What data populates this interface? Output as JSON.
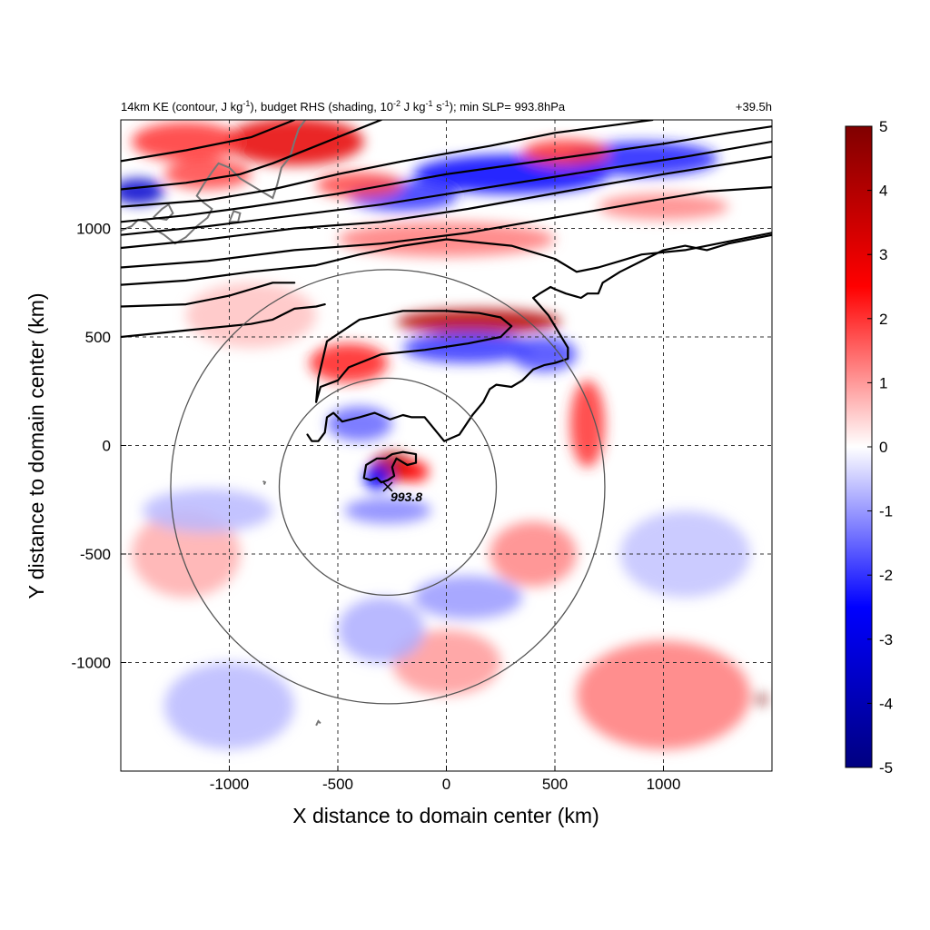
{
  "chart_data": {
    "type": "heatmap",
    "title": {
      "prefix": "14km KE (contour, J kg",
      "sup1": "-1",
      "mid1": "), budget RHS (shading, 10",
      "sup2": "-2",
      "mid2": " J kg",
      "sup3": "-1",
      "mid3": " s",
      "sup4": "-1",
      "suffix": "); min SLP= 993.8hPa"
    },
    "time_label": "+39.5h",
    "xlabel": "X distance to domain center (km)",
    "ylabel": "Y distance to domain center (km)",
    "xlim": [
      -1500,
      1500
    ],
    "ylim": [
      -1500,
      1500
    ],
    "x_ticks": [
      -1000,
      -500,
      0,
      500,
      1000
    ],
    "x_tick_labels": [
      "-1000",
      "-500",
      "0",
      "500",
      "1000"
    ],
    "y_ticks": [
      -1000,
      -500,
      0,
      500,
      1000
    ],
    "y_tick_labels": [
      "-1000",
      "-500",
      "0",
      "500",
      "1000"
    ],
    "grid": "dashed",
    "colorbar": {
      "min": -5,
      "max": 5,
      "ticks": [
        5,
        4,
        3,
        2,
        1,
        0,
        -1,
        -2,
        -3,
        -4,
        -5
      ],
      "tick_labels": [
        "5",
        "4",
        "3",
        "2",
        "1",
        "0",
        "-1",
        "-2",
        "-3",
        "-4",
        "-5"
      ],
      "colors": [
        "#000080",
        "#0000ff",
        "#ffffff",
        "#ff0000",
        "#800000"
      ]
    },
    "storm_center": {
      "x": -270,
      "y": -190,
      "label": "993.8"
    },
    "range_circles": [
      {
        "center_x": -270,
        "center_y": -190,
        "radius_km": 500
      },
      {
        "center_x": -270,
        "center_y": -190,
        "radius_km": 1000
      }
    ],
    "shading_blobs": [
      {
        "x": -700,
        "y": 1400,
        "rx": 320,
        "ry": 110,
        "v": 3.0
      },
      {
        "x": -1200,
        "y": 1400,
        "rx": 250,
        "ry": 90,
        "v": 2.0
      },
      {
        "x": -1420,
        "y": 1170,
        "rx": 120,
        "ry": 60,
        "v": -3.5
      },
      {
        "x": -1100,
        "y": 1250,
        "rx": 200,
        "ry": 70,
        "v": 1.8
      },
      {
        "x": 300,
        "y": 1250,
        "rx": 450,
        "ry": 90,
        "v": -2.5
      },
      {
        "x": 900,
        "y": 1320,
        "rx": 350,
        "ry": 80,
        "v": -2.2
      },
      {
        "x": -200,
        "y": 1150,
        "rx": 250,
        "ry": 70,
        "v": -2.0
      },
      {
        "x": 550,
        "y": 1350,
        "rx": 200,
        "ry": 60,
        "v": 2.0
      },
      {
        "x": -400,
        "y": 1200,
        "rx": 200,
        "ry": 60,
        "v": 1.8
      },
      {
        "x": 0,
        "y": 950,
        "rx": 500,
        "ry": 80,
        "v": 1.3
      },
      {
        "x": 1000,
        "y": 1100,
        "rx": 300,
        "ry": 60,
        "v": 1.2
      },
      {
        "x": 150,
        "y": 570,
        "rx": 380,
        "ry": 60,
        "v": 4.0
      },
      {
        "x": 100,
        "y": 450,
        "rx": 300,
        "ry": 70,
        "v": -2.0
      },
      {
        "x": -450,
        "y": 380,
        "rx": 180,
        "ry": 90,
        "v": 2.2
      },
      {
        "x": 450,
        "y": 420,
        "rx": 150,
        "ry": 80,
        "v": -1.8
      },
      {
        "x": -250,
        "y": -100,
        "rx": 100,
        "ry": 70,
        "v": 4.0
      },
      {
        "x": -320,
        "y": -150,
        "rx": 60,
        "ry": 60,
        "v": -2.5
      },
      {
        "x": -150,
        "y": -120,
        "rx": 70,
        "ry": 50,
        "v": 2.5
      },
      {
        "x": -270,
        "y": -300,
        "rx": 200,
        "ry": 60,
        "v": -1.2
      },
      {
        "x": -400,
        "y": 100,
        "rx": 150,
        "ry": 80,
        "v": -1.5
      },
      {
        "x": 650,
        "y": 100,
        "rx": 80,
        "ry": 200,
        "v": 2.0
      },
      {
        "x": 400,
        "y": -500,
        "rx": 200,
        "ry": 150,
        "v": 1.2
      },
      {
        "x": 100,
        "y": -700,
        "rx": 250,
        "ry": 100,
        "v": -1.0
      },
      {
        "x": -1200,
        "y": -500,
        "rx": 250,
        "ry": 200,
        "v": 0.8
      },
      {
        "x": -1100,
        "y": -300,
        "rx": 300,
        "ry": 100,
        "v": -0.7
      },
      {
        "x": 1000,
        "y": -1150,
        "rx": 400,
        "ry": 250,
        "v": 1.3
      },
      {
        "x": 1450,
        "y": -1170,
        "rx": 25,
        "ry": 25,
        "v": 5.0
      },
      {
        "x": -1000,
        "y": -1200,
        "rx": 300,
        "ry": 200,
        "v": -0.7
      },
      {
        "x": 1100,
        "y": -500,
        "rx": 300,
        "ry": 200,
        "v": -0.6
      },
      {
        "x": -900,
        "y": 600,
        "rx": 300,
        "ry": 150,
        "v": 0.6
      },
      {
        "x": 0,
        "y": -1000,
        "rx": 250,
        "ry": 150,
        "v": 1.0
      },
      {
        "x": -300,
        "y": -850,
        "rx": 200,
        "ry": 150,
        "v": -0.8
      }
    ],
    "ke_contours": [
      [
        [
          -1500,
          1310
        ],
        [
          -1200,
          1360
        ],
        [
          -900,
          1420
        ],
        [
          -700,
          1500
        ]
      ],
      [
        [
          -1500,
          1180
        ],
        [
          -1200,
          1210
        ],
        [
          -950,
          1250
        ],
        [
          -800,
          1300
        ],
        [
          -600,
          1380
        ],
        [
          -450,
          1440
        ],
        [
          -300,
          1500
        ]
      ],
      [
        [
          -1500,
          1100
        ],
        [
          -1100,
          1130
        ],
        [
          -800,
          1180
        ],
        [
          -500,
          1250
        ],
        [
          -200,
          1310
        ],
        [
          200,
          1380
        ],
        [
          500,
          1440
        ],
        [
          800,
          1480
        ],
        [
          950,
          1500
        ]
      ],
      [
        [
          -1500,
          1030
        ],
        [
          -1200,
          1060
        ],
        [
          -900,
          1100
        ],
        [
          -500,
          1160
        ],
        [
          0,
          1250
        ],
        [
          500,
          1320
        ],
        [
          1000,
          1390
        ],
        [
          1300,
          1440
        ],
        [
          1500,
          1470
        ]
      ],
      [
        [
          -1500,
          970
        ],
        [
          -1100,
          1010
        ],
        [
          -700,
          1060
        ],
        [
          -300,
          1110
        ],
        [
          200,
          1190
        ],
        [
          700,
          1270
        ],
        [
          1100,
          1330
        ],
        [
          1500,
          1400
        ]
      ],
      [
        [
          -1500,
          910
        ],
        [
          -1100,
          950
        ],
        [
          -700,
          1000
        ],
        [
          -300,
          1030
        ],
        [
          100,
          1090
        ],
        [
          600,
          1180
        ],
        [
          1000,
          1250
        ],
        [
          1500,
          1330
        ]
      ],
      [
        [
          -1500,
          820
        ],
        [
          -1100,
          850
        ],
        [
          -700,
          900
        ],
        [
          -300,
          930
        ],
        [
          100,
          980
        ],
        [
          500,
          1050
        ],
        [
          900,
          1120
        ],
        [
          1200,
          1170
        ],
        [
          1500,
          1190
        ]
      ],
      [
        [
          -1500,
          740
        ],
        [
          -1200,
          760
        ],
        [
          -900,
          800
        ],
        [
          -600,
          830
        ],
        [
          -400,
          880
        ],
        [
          -200,
          920
        ],
        [
          0,
          950
        ],
        [
          300,
          920
        ],
        [
          500,
          860
        ],
        [
          600,
          800
        ],
        [
          700,
          820
        ],
        [
          800,
          850
        ],
        [
          900,
          880
        ],
        [
          1100,
          900
        ],
        [
          1500,
          980
        ]
      ],
      [
        [
          -1500,
          640
        ],
        [
          -1200,
          650
        ],
        [
          -1000,
          690
        ],
        [
          -800,
          750
        ],
        [
          -700,
          750
        ]
      ],
      [
        [
          -1500,
          500
        ],
        [
          -1100,
          540
        ],
        [
          -900,
          560
        ],
        [
          -800,
          580
        ],
        [
          -700,
          630
        ],
        [
          -600,
          640
        ],
        [
          -560,
          650
        ]
      ],
      [
        [
          -590,
          310
        ],
        [
          -550,
          480
        ],
        [
          -400,
          580
        ],
        [
          -200,
          620
        ],
        [
          0,
          620
        ],
        [
          150,
          610
        ],
        [
          250,
          590
        ],
        [
          300,
          550
        ],
        [
          250,
          500
        ],
        [
          100,
          470
        ],
        [
          -100,
          440
        ],
        [
          -300,
          420
        ],
        [
          -450,
          360
        ],
        [
          -500,
          300
        ],
        [
          -580,
          270
        ],
        [
          -600,
          200
        ],
        [
          -590,
          310
        ]
      ],
      [
        [
          -640,
          50
        ],
        [
          -620,
          20
        ],
        [
          -590,
          20
        ],
        [
          -560,
          60
        ],
        [
          -550,
          130
        ],
        [
          -520,
          150
        ],
        [
          -480,
          110
        ],
        [
          -400,
          130
        ],
        [
          -330,
          150
        ],
        [
          -260,
          120
        ],
        [
          -200,
          140
        ],
        [
          -160,
          130
        ],
        [
          -100,
          130
        ],
        [
          -10,
          20
        ],
        [
          60,
          50
        ],
        [
          120,
          140
        ],
        [
          170,
          200
        ],
        [
          200,
          260
        ],
        [
          230,
          280
        ],
        [
          300,
          270
        ],
        [
          350,
          300
        ],
        [
          400,
          350
        ],
        [
          450,
          370
        ],
        [
          500,
          380
        ],
        [
          560,
          400
        ],
        [
          560,
          450
        ],
        [
          470,
          600
        ],
        [
          400,
          680
        ],
        [
          430,
          700
        ],
        [
          480,
          730
        ],
        [
          500,
          720
        ],
        [
          550,
          700
        ],
        [
          620,
          680
        ],
        [
          650,
          700
        ],
        [
          700,
          700
        ],
        [
          720,
          750
        ],
        [
          800,
          800
        ],
        [
          900,
          850
        ],
        [
          1000,
          900
        ],
        [
          1100,
          920
        ],
        [
          1200,
          900
        ],
        [
          1300,
          930
        ],
        [
          1500,
          970
        ]
      ],
      [
        [
          -380,
          -150
        ],
        [
          -370,
          -90
        ],
        [
          -320,
          -60
        ],
        [
          -280,
          -60
        ],
        [
          -250,
          -40
        ],
        [
          -200,
          -30
        ],
        [
          -140,
          -40
        ],
        [
          -140,
          -80
        ],
        [
          -180,
          -90
        ],
        [
          -230,
          -60
        ],
        [
          -250,
          -100
        ],
        [
          -240,
          -140
        ],
        [
          -270,
          -160
        ],
        [
          -300,
          -170
        ],
        [
          -320,
          -150
        ],
        [
          -350,
          -160
        ],
        [
          -380,
          -150
        ]
      ]
    ],
    "coastline": [
      [
        [
          -1500,
          990
        ],
        [
          -1450,
          1010
        ],
        [
          -1420,
          1040
        ],
        [
          -1380,
          1030
        ],
        [
          -1350,
          1000
        ],
        [
          -1300,
          970
        ],
        [
          -1250,
          930
        ],
        [
          -1200,
          960
        ],
        [
          -1150,
          1010
        ],
        [
          -1100,
          1050
        ],
        [
          -1080,
          1090
        ],
        [
          -1120,
          1120
        ],
        [
          -1150,
          1150
        ],
        [
          -1120,
          1200
        ],
        [
          -1080,
          1260
        ],
        [
          -1050,
          1300
        ],
        [
          -1000,
          1280
        ],
        [
          -950,
          1230
        ],
        [
          -900,
          1200
        ],
        [
          -850,
          1170
        ],
        [
          -800,
          1140
        ],
        [
          -780,
          1200
        ],
        [
          -760,
          1280
        ],
        [
          -720,
          1330
        ],
        [
          -700,
          1400
        ],
        [
          -680,
          1460
        ],
        [
          -650,
          1500
        ]
      ],
      [
        [
          -1350,
          1050
        ],
        [
          -1310,
          1090
        ],
        [
          -1280,
          1110
        ],
        [
          -1260,
          1070
        ],
        [
          -1290,
          1040
        ],
        [
          -1350,
          1050
        ]
      ],
      [
        [
          -1000,
          1030
        ],
        [
          -980,
          1080
        ],
        [
          -950,
          1070
        ],
        [
          -960,
          1030
        ],
        [
          -1000,
          1030
        ]
      ],
      [
        [
          -600,
          -1290
        ],
        [
          -590,
          -1270
        ],
        [
          -580,
          -1280
        ]
      ],
      [
        [
          -840,
          -180
        ],
        [
          -835,
          -170
        ],
        [
          -845,
          -165
        ]
      ]
    ]
  }
}
